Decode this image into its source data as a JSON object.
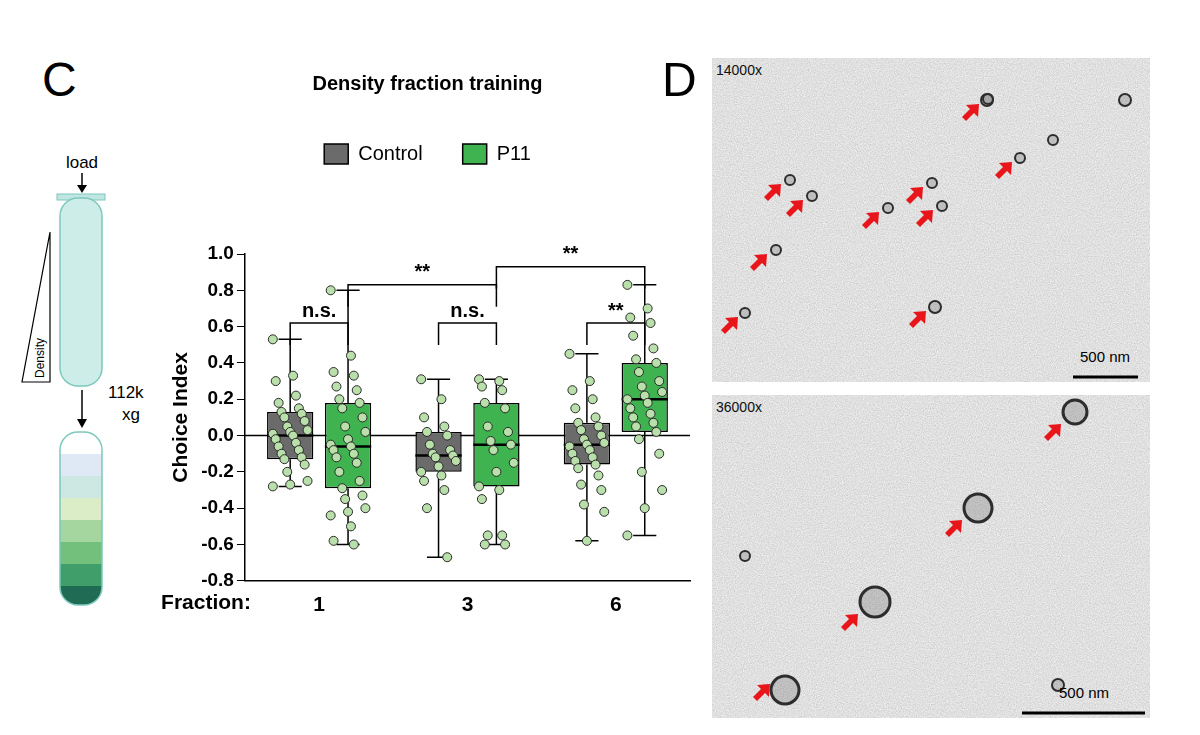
{
  "chart_data": {
    "type": "box",
    "panel_label": "C",
    "title": "Density fraction training",
    "y_label": "Choice Index",
    "x_label": "Fraction:",
    "categories": [
      "1",
      "3",
      "6"
    ],
    "ylim": [
      -0.8,
      1.0
    ],
    "yticks": [
      -0.8,
      -0.6,
      -0.4,
      -0.2,
      {
        "value": 0,
        "label": "0.0"
      },
      0.2,
      0.4,
      0.6,
      0.8,
      {
        "value": 1,
        "label": "1.0"
      }
    ],
    "grid": false,
    "legend": "top",
    "reference_line": 0,
    "series": [
      {
        "name": "Control",
        "color": "#6b6b6b",
        "boxes": [
          {
            "min": -0.28,
            "q1": -0.13,
            "median": 0.0,
            "q3": 0.13,
            "max": 0.53
          },
          {
            "min": -0.67,
            "q1": -0.2,
            "median": -0.11,
            "q3": 0.02,
            "max": 0.31
          },
          {
            "min": -0.58,
            "q1": -0.16,
            "median": -0.05,
            "q3": 0.07,
            "max": 0.45
          }
        ],
        "points": [
          [
            0.53,
            0.33,
            0.3,
            0.22,
            0.18,
            0.15,
            0.13,
            0.12,
            0.1,
            0.08,
            0.05,
            0.03,
            0.02,
            0.01,
            0.0,
            -0.02,
            -0.04,
            -0.06,
            -0.08,
            -0.1,
            -0.12,
            -0.13,
            -0.16,
            -0.2,
            -0.25,
            -0.27,
            -0.28
          ],
          [
            0.31,
            0.2,
            0.1,
            0.05,
            0.02,
            0.0,
            -0.05,
            -0.08,
            -0.1,
            -0.11,
            -0.12,
            -0.14,
            -0.17,
            -0.2,
            -0.22,
            -0.25,
            -0.3,
            -0.4,
            -0.67
          ],
          [
            0.45,
            0.3,
            0.25,
            0.2,
            0.15,
            0.1,
            0.07,
            0.05,
            0.03,
            0.0,
            -0.02,
            -0.04,
            -0.05,
            -0.06,
            -0.08,
            -0.1,
            -0.12,
            -0.14,
            -0.16,
            -0.18,
            -0.22,
            -0.27,
            -0.3,
            -0.38,
            -0.42,
            -0.58
          ]
        ]
      },
      {
        "name": "P11",
        "color": "#3fb34f",
        "boxes": [
          {
            "min": -0.6,
            "q1": -0.29,
            "median": -0.06,
            "q3": 0.18,
            "max": 0.8
          },
          {
            "min": -0.6,
            "q1": -0.28,
            "median": -0.05,
            "q3": 0.18,
            "max": 0.31
          },
          {
            "min": -0.55,
            "q1": 0.02,
            "median": 0.2,
            "q3": 0.4,
            "max": 0.83
          }
        ],
        "points": [
          [
            0.8,
            0.44,
            0.35,
            0.33,
            0.27,
            0.25,
            0.2,
            0.18,
            0.15,
            0.1,
            0.05,
            0.02,
            -0.02,
            -0.05,
            -0.06,
            -0.08,
            -0.1,
            -0.12,
            -0.15,
            -0.2,
            -0.25,
            -0.29,
            -0.33,
            -0.35,
            -0.4,
            -0.42,
            -0.44,
            -0.5,
            -0.58,
            -0.6
          ],
          [
            0.31,
            0.3,
            0.27,
            0.25,
            0.18,
            0.15,
            0.05,
            0.02,
            -0.03,
            -0.05,
            -0.08,
            -0.15,
            -0.2,
            -0.28,
            -0.3,
            -0.35,
            -0.55,
            -0.6,
            -0.6,
            -0.55
          ],
          [
            0.83,
            0.7,
            0.65,
            0.62,
            0.55,
            0.48,
            0.42,
            0.4,
            0.35,
            0.3,
            0.27,
            0.24,
            0.22,
            0.2,
            0.18,
            0.15,
            0.12,
            0.1,
            0.07,
            0.05,
            0.02,
            -0.02,
            -0.1,
            -0.2,
            -0.3,
            -0.4,
            -0.55
          ]
        ]
      }
    ],
    "comparisons": [
      {
        "from": [
          0,
          0
        ],
        "to": [
          0,
          1
        ],
        "y": 0.62,
        "label": "n.s."
      },
      {
        "from": [
          1,
          0
        ],
        "to": [
          1,
          1
        ],
        "y": 0.62,
        "label": "n.s."
      },
      {
        "from": [
          2,
          0
        ],
        "to": [
          2,
          1
        ],
        "y": 0.62,
        "label": "**"
      },
      {
        "from": [
          0,
          1
        ],
        "to": [
          1,
          1
        ],
        "y": 0.83,
        "label": "**"
      },
      {
        "from": [
          1,
          1
        ],
        "to": [
          2,
          1
        ],
        "y": 0.93,
        "label": "**"
      }
    ]
  },
  "diagram": {
    "tube": {
      "load_label": "load",
      "gradient_label": "Density",
      "centrifuge_label": "112k xg"
    },
    "panel_d": {
      "label": "D",
      "images": [
        {
          "magnification": "14000x",
          "scale_bar": "500 nm"
        },
        {
          "magnification": "36000x",
          "scale_bar": "500 nm"
        }
      ]
    }
  }
}
